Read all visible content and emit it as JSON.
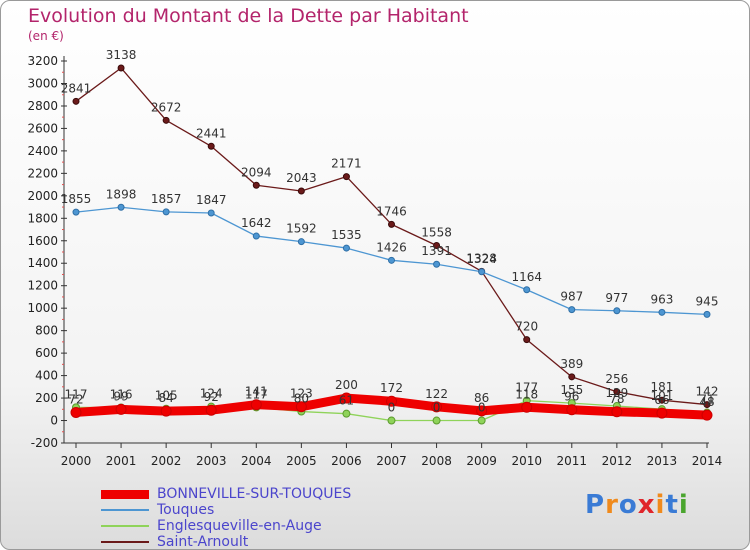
{
  "header": {
    "title": "Evolution du Montant de la Dette par Habitant",
    "unit": "(en €)"
  },
  "logo": {
    "text": "Proxiti",
    "colors": [
      "#3a7bd5",
      "#f08a1c",
      "#3a7bd5",
      "#e0252b",
      "#f08a1c",
      "#3a7bd5",
      "#4aa52e"
    ]
  },
  "chart_data": {
    "type": "line",
    "title": "Evolution du Montant de la Dette par Habitant",
    "ylabel": "(en €)",
    "xlabel": "",
    "x": [
      "2000",
      "2001",
      "2002",
      "2003",
      "2004",
      "2005",
      "2006",
      "2007",
      "2008",
      "2009",
      "2010",
      "2011",
      "2012",
      "2013",
      "2014"
    ],
    "ylim": [
      -200,
      3200
    ],
    "yticks": [
      -200,
      0,
      200,
      400,
      600,
      800,
      1000,
      1200,
      1400,
      1600,
      1800,
      2000,
      2200,
      2400,
      2600,
      2800,
      3000,
      3200
    ],
    "grid": false,
    "legend": "bottom-left",
    "series": [
      {
        "name": "BONNEVILLE-SUR-TOUQUES",
        "color": "#ee0000",
        "values": [
          72,
          99,
          84,
          92,
          141,
          123,
          200,
          172,
          122,
          86,
          118,
          96,
          78,
          66,
          48
        ],
        "labels": [
          "72",
          "99",
          "84",
          "92",
          "141",
          "123",
          "200",
          "172",
          "122",
          "86",
          "118",
          "96",
          "78",
          "66",
          "48"
        ]
      },
      {
        "name": "Touques",
        "color": "#4d96d2",
        "values": [
          1855,
          1898,
          1857,
          1847,
          1642,
          1592,
          1535,
          1426,
          1391,
          1324,
          1164,
          987,
          977,
          963,
          945
        ],
        "labels": [
          "1855",
          "1898",
          "1857",
          "1847",
          "1642",
          "1592",
          "1535",
          "1426",
          "1391",
          "1324",
          "1164",
          "987",
          "977",
          "963",
          "945"
        ]
      },
      {
        "name": "Englesqueville-en-Auge",
        "color": "#8fd35a",
        "values": [
          117,
          116,
          105,
          124,
          117,
          80,
          61,
          0,
          0,
          0,
          177,
          155,
          129,
          101,
          71
        ],
        "labels": [
          "117",
          "116",
          "105",
          "124",
          "117",
          "80",
          "61",
          "0",
          "0",
          "0",
          "177",
          "155",
          "129",
          "101",
          "71"
        ]
      },
      {
        "name": "Saint-Arnoult",
        "color": "#6b1a1a",
        "values": [
          2841,
          3138,
          2672,
          2441,
          2094,
          2043,
          2171,
          1746,
          1558,
          1328,
          720,
          389,
          256,
          181,
          142
        ],
        "labels": [
          "2841",
          "3138",
          "2672",
          "2441",
          "2094",
          "2043",
          "2171",
          "1746",
          "1558",
          "1328",
          "720",
          "389",
          "256",
          "181",
          "142"
        ]
      }
    ]
  }
}
